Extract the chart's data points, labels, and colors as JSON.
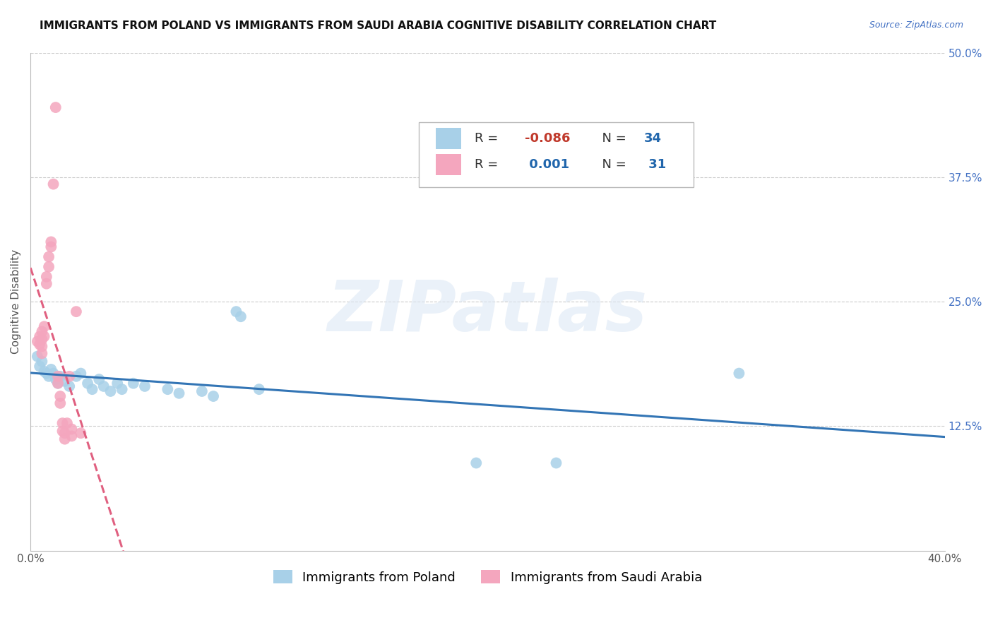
{
  "title": "IMMIGRANTS FROM POLAND VS IMMIGRANTS FROM SAUDI ARABIA COGNITIVE DISABILITY CORRELATION CHART",
  "source": "Source: ZipAtlas.com",
  "ylabel": "Cognitive Disability",
  "xlim": [
    0.0,
    0.4
  ],
  "ylim": [
    0.0,
    0.5
  ],
  "ytick_labels_right": [
    "12.5%",
    "25.0%",
    "37.5%",
    "50.0%"
  ],
  "ytick_values_right": [
    0.125,
    0.25,
    0.375,
    0.5
  ],
  "poland_r": "-0.086",
  "poland_n": "34",
  "saudi_r": "0.001",
  "saudi_n": "31",
  "poland_color": "#a8d0e8",
  "saudi_color": "#f4a6be",
  "poland_line_color": "#3375b5",
  "saudi_line_color": "#e06080",
  "poland_scatter": [
    [
      0.003,
      0.195
    ],
    [
      0.004,
      0.185
    ],
    [
      0.005,
      0.19
    ],
    [
      0.006,
      0.18
    ],
    [
      0.007,
      0.178
    ],
    [
      0.008,
      0.175
    ],
    [
      0.009,
      0.182
    ],
    [
      0.01,
      0.178
    ],
    [
      0.011,
      0.172
    ],
    [
      0.012,
      0.168
    ],
    [
      0.013,
      0.175
    ],
    [
      0.015,
      0.17
    ],
    [
      0.017,
      0.165
    ],
    [
      0.02,
      0.175
    ],
    [
      0.022,
      0.178
    ],
    [
      0.025,
      0.168
    ],
    [
      0.027,
      0.162
    ],
    [
      0.03,
      0.172
    ],
    [
      0.032,
      0.165
    ],
    [
      0.035,
      0.16
    ],
    [
      0.038,
      0.168
    ],
    [
      0.04,
      0.162
    ],
    [
      0.045,
      0.168
    ],
    [
      0.05,
      0.165
    ],
    [
      0.06,
      0.162
    ],
    [
      0.065,
      0.158
    ],
    [
      0.075,
      0.16
    ],
    [
      0.08,
      0.155
    ],
    [
      0.09,
      0.24
    ],
    [
      0.092,
      0.235
    ],
    [
      0.1,
      0.162
    ],
    [
      0.195,
      0.088
    ],
    [
      0.23,
      0.088
    ],
    [
      0.31,
      0.178
    ]
  ],
  "saudi_scatter": [
    [
      0.003,
      0.21
    ],
    [
      0.004,
      0.207
    ],
    [
      0.004,
      0.215
    ],
    [
      0.005,
      0.22
    ],
    [
      0.005,
      0.212
    ],
    [
      0.005,
      0.205
    ],
    [
      0.005,
      0.198
    ],
    [
      0.006,
      0.225
    ],
    [
      0.006,
      0.215
    ],
    [
      0.007,
      0.275
    ],
    [
      0.007,
      0.268
    ],
    [
      0.008,
      0.295
    ],
    [
      0.008,
      0.285
    ],
    [
      0.009,
      0.31
    ],
    [
      0.009,
      0.305
    ],
    [
      0.01,
      0.368
    ],
    [
      0.011,
      0.445
    ],
    [
      0.012,
      0.175
    ],
    [
      0.012,
      0.168
    ],
    [
      0.013,
      0.155
    ],
    [
      0.013,
      0.148
    ],
    [
      0.014,
      0.128
    ],
    [
      0.014,
      0.12
    ],
    [
      0.015,
      0.118
    ],
    [
      0.015,
      0.112
    ],
    [
      0.016,
      0.128
    ],
    [
      0.017,
      0.175
    ],
    [
      0.018,
      0.122
    ],
    [
      0.018,
      0.115
    ],
    [
      0.02,
      0.24
    ],
    [
      0.022,
      0.118
    ]
  ],
  "watermark_zip": "ZIP",
  "watermark_atlas": "atlas",
  "background_color": "#ffffff",
  "grid_color": "#cccccc",
  "title_fontsize": 11,
  "label_fontsize": 11,
  "tick_fontsize": 11,
  "legend_fontsize": 13
}
